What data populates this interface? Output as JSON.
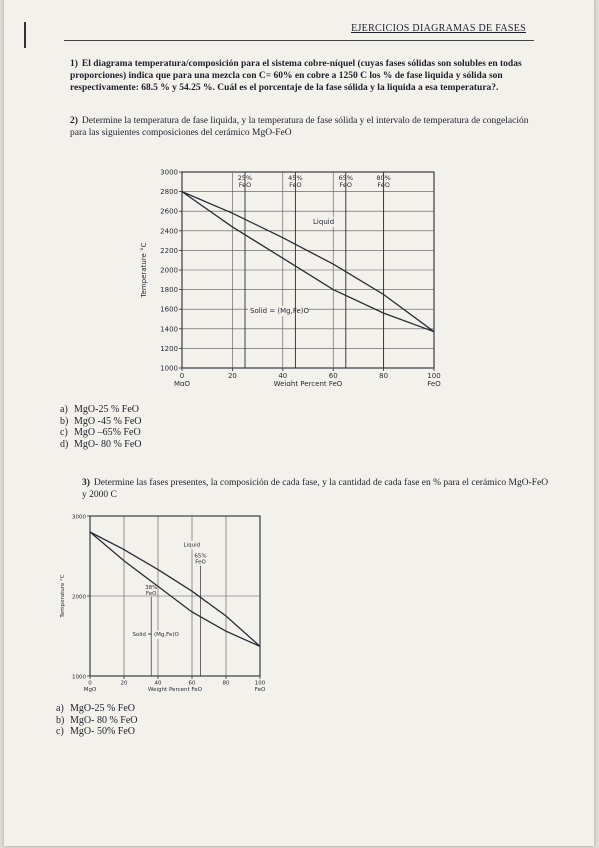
{
  "header": {
    "title": "EJERCICIOS DIAGRAMAS DE FASES"
  },
  "q1": {
    "number": "1)",
    "text": "El diagrama temperatura/composición para el sistema cobre-níquel (cuyas fases sólidas son solubles en todas proporciones) indica que para una mezcla con C= 60% en cobre a 1250 C los % de fase liquida y sólida son respectivamente: 68.5 % y 54.25 %.  Cuál es el porcentaje de la fase sólida y la liquida a esa temperatura?."
  },
  "q2": {
    "number": "2)",
    "text": "Determine la temperatura  de fase liquida, y la temperatura de fase sólida y el intervalo de temperatura de congelación para las siguientes composiciones del cerámico MgO-FeO",
    "options": [
      {
        "label": "a)",
        "text": "MgO-25 % FeO"
      },
      {
        "label": "b)",
        "text": "MgO -45 % FeO"
      },
      {
        "label": "c)",
        "text": "MgO –65% FeO"
      },
      {
        "label": "d)",
        "text": "MgO- 80 % FeO"
      }
    ]
  },
  "q3": {
    "number": "3)",
    "text": "Determine las fases presentes, la composición de cada fase, y la cantidad de cada fase en % para el cerámico MgO-FeO  y 2000 C",
    "options": [
      {
        "label": "a)",
        "text": "MgO-25 % FeO"
      },
      {
        "label": "b)",
        "text": "MgO- 80 % FeO"
      },
      {
        "label": "c)",
        "text": "MgO- 50% FeO"
      }
    ]
  },
  "chart_data": [
    {
      "type": "line",
      "ylabel": "Temperature °C",
      "xlabel": "Weight Percent FeO",
      "xlim": [
        0,
        100
      ],
      "ylim": [
        1000,
        3000
      ],
      "y_tick_labels": [
        "1000",
        "1200",
        "1400",
        "1600",
        "1800",
        "2000",
        "2200",
        "2400",
        "2600",
        "2800",
        "3000"
      ],
      "x_tick_labels": [
        "0",
        "20",
        "40",
        "60",
        "80",
        "100"
      ],
      "x_end_labels": [
        "MgO",
        "FeO"
      ],
      "series": [
        {
          "name": "Liquid",
          "x": [
            0,
            20,
            40,
            60,
            80,
            100
          ],
          "y": [
            2800,
            2580,
            2330,
            2060,
            1750,
            1370
          ]
        },
        {
          "name": "Solid = (Mg,Fe)O",
          "x": [
            0,
            20,
            40,
            60,
            80,
            100
          ],
          "y": [
            2800,
            2440,
            2120,
            1800,
            1560,
            1370
          ]
        }
      ],
      "region_labels": [
        "Liquid",
        "Solid = (Mg,Fe)O"
      ],
      "marked_compositions": [
        {
          "x": 25,
          "line1": "25%",
          "line2": "FeO"
        },
        {
          "x": 45,
          "line1": "45%",
          "line2": "FeO"
        },
        {
          "x": 65,
          "line1": "65%",
          "line2": "FeO"
        },
        {
          "x": 80,
          "line1": "80%",
          "line2": "FeO"
        }
      ],
      "grid": true
    },
    {
      "type": "line",
      "ylabel": "Temperature °C",
      "xlabel": "Weight Percent FeO",
      "xlim": [
        0,
        100
      ],
      "ylim": [
        1000,
        3000
      ],
      "y_tick_labels": [
        "1000",
        "2000",
        "3000"
      ],
      "x_tick_labels": [
        "0",
        "20",
        "40",
        "60",
        "80",
        "100"
      ],
      "x_end_labels": [
        "MgO",
        "FeO"
      ],
      "series": [
        {
          "name": "Liquid",
          "x": [
            0,
            20,
            40,
            60,
            80,
            100
          ],
          "y": [
            2800,
            2580,
            2330,
            2060,
            1750,
            1370
          ]
        },
        {
          "name": "Solid = (Mg,Fe)O",
          "x": [
            0,
            20,
            40,
            60,
            80,
            100
          ],
          "y": [
            2800,
            2440,
            2120,
            1800,
            1560,
            1370
          ]
        }
      ],
      "region_labels": [
        "Liquid",
        "Solid = (Mg,Fe)O"
      ],
      "tie_line_annotations": [
        {
          "x": 36,
          "y": 1990,
          "line1": "38%",
          "line2": "FeO"
        },
        {
          "x": 65,
          "y": 2380,
          "line1": "65%",
          "line2": "FeO"
        }
      ],
      "grid": true
    }
  ]
}
